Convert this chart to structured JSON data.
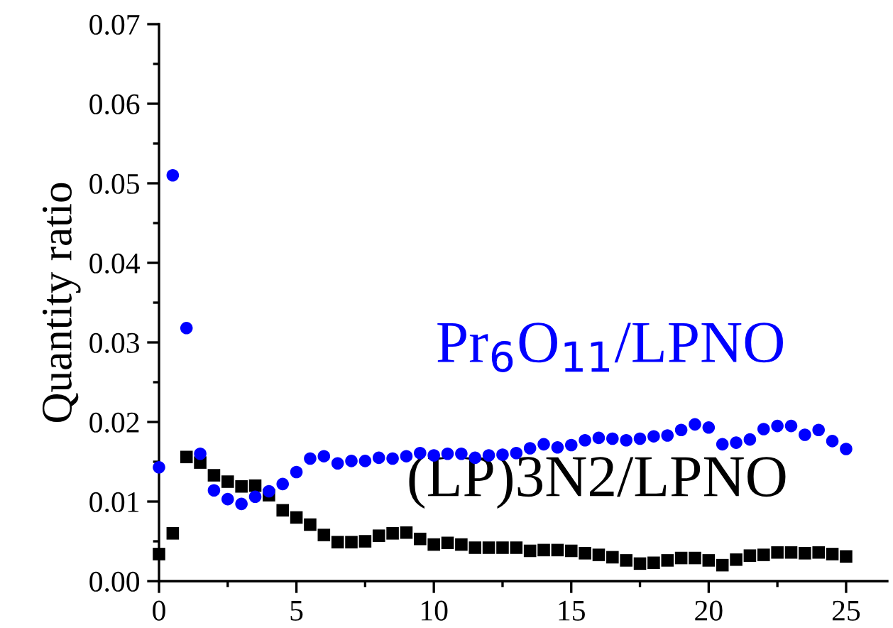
{
  "chart_data": {
    "type": "scatter",
    "ylabel": "Quantity ratio",
    "xlim": [
      0,
      26.5
    ],
    "ylim": [
      0,
      0.07
    ],
    "xticks": [
      0,
      5,
      10,
      15,
      20,
      25
    ],
    "yticks": [
      {
        "value": 0,
        "label": "0.00"
      },
      {
        "value": 0.01,
        "label": "0.01"
      },
      {
        "value": 0.02,
        "label": "0.02"
      },
      {
        "value": 0.03,
        "label": "0.03"
      },
      {
        "value": 0.04,
        "label": "0.04"
      },
      {
        "value": 0.05,
        "label": "0.05"
      },
      {
        "value": 0.06,
        "label": "0.06"
      },
      {
        "value": 0.07,
        "label": "0.07"
      }
    ],
    "x": [
      0,
      0.5,
      1,
      1.5,
      2,
      2.5,
      3,
      3.5,
      4,
      4.5,
      5,
      5.5,
      6,
      6.5,
      7,
      7.5,
      8,
      8.5,
      9,
      9.5,
      10,
      10.5,
      11,
      11.5,
      12,
      12.5,
      13,
      13.5,
      14,
      14.5,
      15,
      15.5,
      16,
      16.5,
      17,
      17.5,
      18,
      18.5,
      19,
      19.5,
      20,
      20.5,
      21,
      21.5,
      22,
      22.5,
      23,
      23.5,
      24,
      24.5,
      25
    ],
    "grid": false,
    "legend": false,
    "series": [
      {
        "name": "Pr$_{6}$O$_{11}$/LPNO",
        "color": "#0000ff",
        "marker": "circle",
        "values": [
          0.0143,
          0.051,
          0.0318,
          0.016,
          0.0114,
          0.0103,
          0.0097,
          0.0106,
          0.0113,
          0.0122,
          0.0137,
          0.0154,
          0.0157,
          0.0148,
          0.0151,
          0.0151,
          0.0155,
          0.0154,
          0.0157,
          0.0161,
          0.0158,
          0.016,
          0.016,
          0.0155,
          0.0158,
          0.0159,
          0.0161,
          0.0167,
          0.0172,
          0.0168,
          0.0171,
          0.0177,
          0.018,
          0.0179,
          0.0177,
          0.0179,
          0.0182,
          0.0183,
          0.019,
          0.0197,
          0.0193,
          0.0172,
          0.0174,
          0.0178,
          0.0191,
          0.0195,
          0.0195,
          0.0184,
          0.019,
          0.0176,
          0.0166
        ]
      },
      {
        "name": "(LP)3N2/LPNO",
        "color": "#000000",
        "marker": "square",
        "values": [
          0.0034,
          0.006,
          0.0156,
          0.0149,
          0.0133,
          0.0125,
          0.0119,
          0.012,
          0.0108,
          0.0089,
          0.008,
          0.0071,
          0.0058,
          0.0049,
          0.0049,
          0.005,
          0.0057,
          0.006,
          0.0061,
          0.0053,
          0.0046,
          0.0048,
          0.0046,
          0.0042,
          0.0042,
          0.0042,
          0.0042,
          0.0038,
          0.0039,
          0.0039,
          0.0038,
          0.0035,
          0.0033,
          0.003,
          0.0026,
          0.0022,
          0.0023,
          0.0026,
          0.0029,
          0.0029,
          0.0026,
          0.002,
          0.0027,
          0.0032,
          0.0033,
          0.0036,
          0.0036,
          0.0035,
          0.0036,
          0.0034,
          0.0031
        ]
      }
    ]
  }
}
